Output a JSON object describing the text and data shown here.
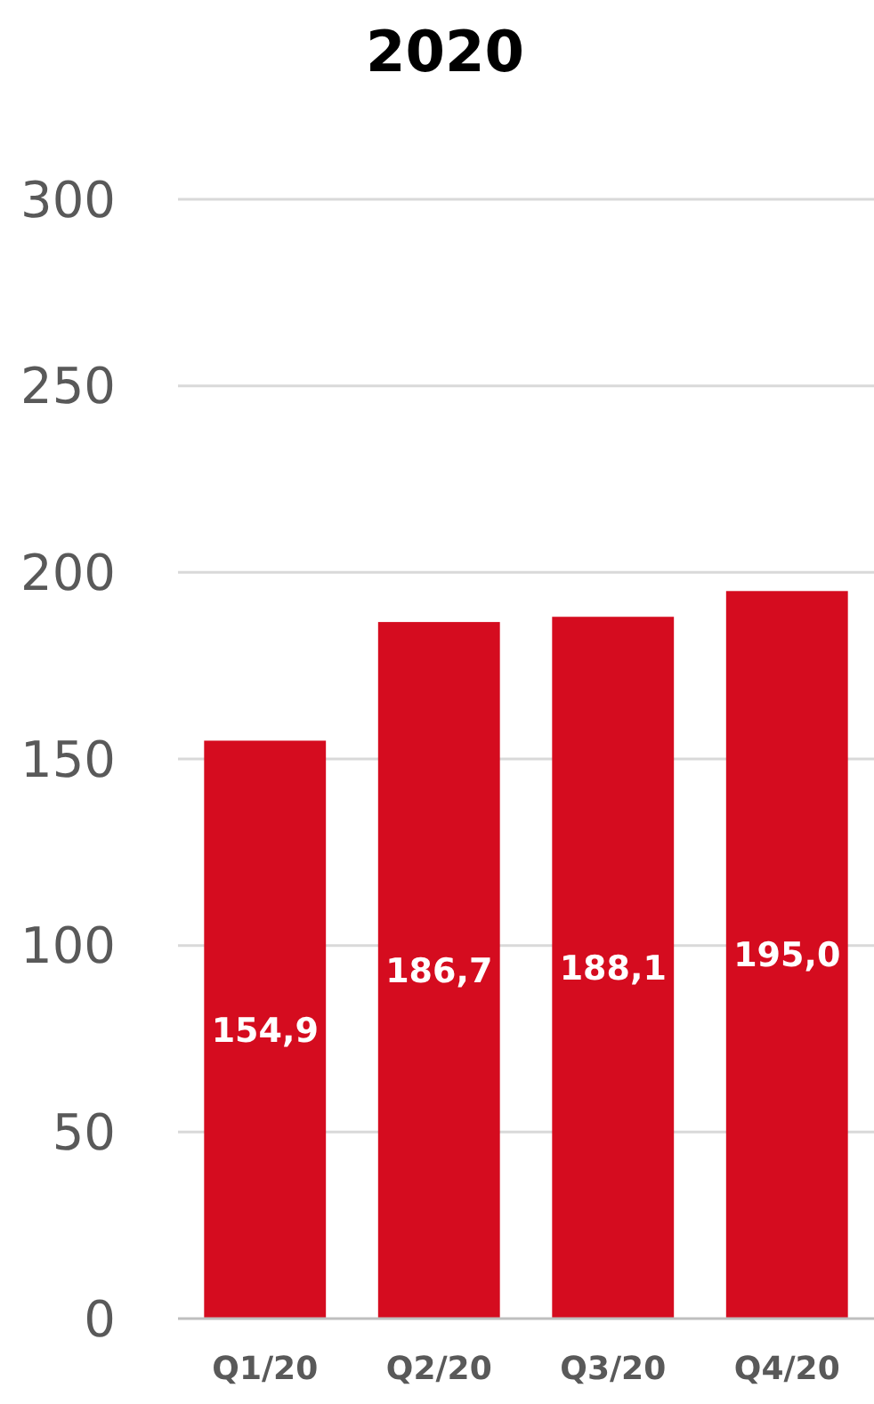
{
  "chart_data": {
    "type": "bar",
    "title": "2020",
    "categories": [
      "Q1/20",
      "Q2/20",
      "Q3/20",
      "Q4/20"
    ],
    "values": [
      154.9,
      186.7,
      188.1,
      195.0
    ],
    "value_labels": [
      "154,9",
      "186,7",
      "188,1",
      "195,0"
    ],
    "color": "#d50c1f",
    "ylim": [
      0,
      300
    ],
    "yticks": [
      0,
      50,
      100,
      150,
      200,
      250,
      300
    ],
    "grid": "y"
  }
}
